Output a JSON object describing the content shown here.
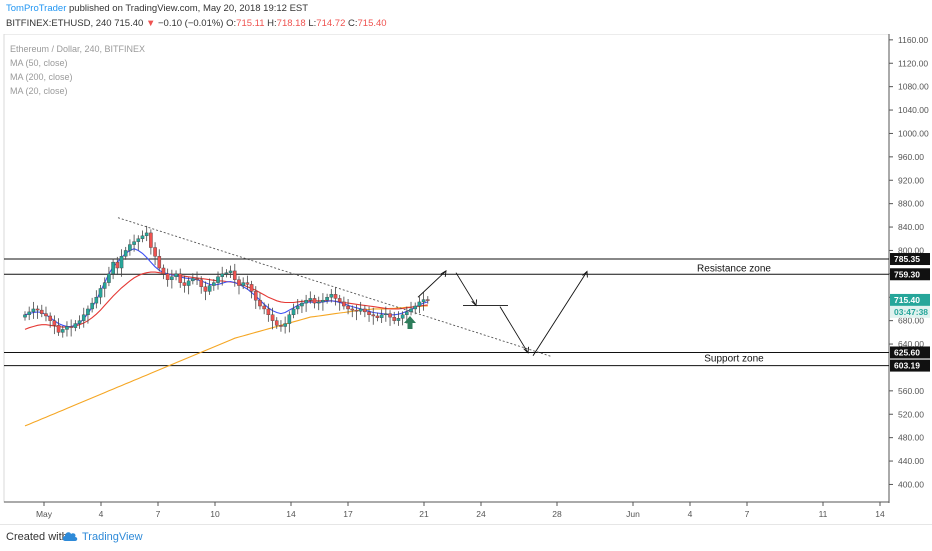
{
  "header": {
    "author": "TomProTrader",
    "published_text": " published on TradingView.com, May 20, 2018 19:12 EST",
    "symbol_line": "BITFINEX:ETHUSD, 240",
    "last": "715.40",
    "arrow": "▼",
    "change": "−0.10 (−0.01%)",
    "o_label": "O:",
    "o_val": "715.11",
    "h_label": "H:",
    "h_val": "718.18",
    "l_label": "L:",
    "l_val": "714.72",
    "c_label": "C:",
    "c_val": "715.40"
  },
  "legend": {
    "title": "Ethereum / Dollar, 240, BITFINEX",
    "ma1": "MA (50, close)",
    "ma2": "MA (200, close)",
    "ma3": "MA (20, close)"
  },
  "footer": {
    "created_with": "Created with",
    "brand": "TradingView"
  },
  "colors": {
    "up": "#26a69a",
    "down": "#ef5350",
    "ma20": "#3f51f5",
    "ma50": "#e53935",
    "ma200": "#f5a623",
    "arrow_green": "#2e7d5b",
    "brand": "#2e8ad8"
  },
  "chart_data": {
    "type": "line",
    "ylim": [
      370,
      1170
    ],
    "y_ticks": [
      400,
      440,
      480,
      520,
      560,
      640,
      680,
      720,
      760,
      800,
      840,
      880,
      920,
      960,
      1000,
      1040,
      1080,
      1120,
      1160
    ],
    "x_labels": [
      {
        "label": "May",
        "day": 1
      },
      {
        "label": "4",
        "day": 4
      },
      {
        "label": "7",
        "day": 7
      },
      {
        "label": "10",
        "day": 10
      },
      {
        "label": "14",
        "day": 14
      },
      {
        "label": "17",
        "day": 17
      },
      {
        "label": "21",
        "day": 21
      },
      {
        "label": "24",
        "day": 24
      },
      {
        "label": "28",
        "day": 28
      },
      {
        "label": "Jun",
        "day": 32
      },
      {
        "label": "4",
        "day": 35
      },
      {
        "label": "7",
        "day": 38
      },
      {
        "label": "11",
        "day": 42
      },
      {
        "label": "14",
        "day": 45
      }
    ],
    "price_labels": [
      {
        "text": "785.35",
        "value": 785.35,
        "style": "dark"
      },
      {
        "text": "759.30",
        "value": 759.3,
        "style": "dark"
      },
      {
        "text": "715.40",
        "value": 715.4,
        "style": "green"
      },
      {
        "text": "03:47:38",
        "value": 695,
        "style": "greenlight"
      },
      {
        "text": "625.60",
        "value": 625.6,
        "style": "dark"
      },
      {
        "text": "603.19",
        "value": 603.19,
        "style": "dark"
      }
    ],
    "zones": {
      "resistance": {
        "label": "Resistance zone",
        "top": 785.35,
        "bottom": 759.3
      },
      "support": {
        "label": "Support zone",
        "top": 625.6,
        "bottom": 603.19
      }
    },
    "candles_close": [
      690,
      695,
      700,
      698,
      692,
      688,
      680,
      672,
      660,
      665,
      670,
      668,
      675,
      680,
      690,
      700,
      710,
      720,
      735,
      745,
      760,
      780,
      770,
      790,
      800,
      810,
      815,
      820,
      825,
      830,
      805,
      790,
      770,
      760,
      750,
      755,
      760,
      745,
      740,
      748,
      752,
      750,
      738,
      730,
      740,
      745,
      755,
      760,
      762,
      765,
      750,
      740,
      745,
      742,
      730,
      715,
      705,
      700,
      690,
      680,
      672,
      670,
      675,
      690,
      700,
      705,
      710,
      715,
      718,
      710,
      712,
      715,
      720,
      725,
      718,
      712,
      705,
      700,
      698,
      696,
      700,
      695,
      690,
      688,
      685,
      690,
      692,
      686,
      680,
      684,
      690,
      695,
      700,
      705,
      712,
      716,
      715
    ],
    "series": [
      {
        "name": "MA (20, close)",
        "values": [
          690,
          692,
          694,
          695,
          694,
          690,
          685,
          680,
          675,
          672,
          670,
          670,
          672,
          676,
          683,
          692,
          703,
          715,
          730,
          745,
          760,
          772,
          780,
          788,
          795,
          800,
          803,
          800,
          795,
          788,
          780,
          772,
          766,
          762,
          760,
          758,
          757,
          755,
          753,
          752,
          751,
          750,
          748,
          745,
          742,
          741,
          742,
          744,
          746,
          747,
          745,
          742,
          738,
          734,
          728,
          722,
          715,
          708,
          702,
          697,
          694,
          692,
          694,
          698,
          702,
          706,
          709,
          711,
          712,
          711,
          711,
          712,
          713,
          714,
          713,
          711,
          709,
          706,
          704,
          702,
          700,
          698,
          696,
          694,
          693,
          692,
          691,
          690,
          690,
          691,
          693,
          696,
          699,
          703,
          707,
          710,
          712
        ]
      },
      {
        "name": "MA (50, close)",
        "values": [
          665,
          668,
          670,
          672,
          673,
          673,
          672,
          671,
          670,
          669,
          669,
          670,
          671,
          673,
          676,
          680,
          685,
          691,
          698,
          706,
          714,
          722,
          729,
          736,
          742,
          748,
          753,
          757,
          760,
          762,
          763,
          763,
          762,
          761,
          760,
          759,
          758,
          757,
          756,
          755,
          754,
          753,
          752,
          751,
          750,
          749,
          748,
          748,
          747,
          746,
          745,
          743,
          741,
          738,
          735,
          732,
          728,
          724,
          720,
          717,
          714,
          712,
          711,
          711,
          711,
          712,
          713,
          713,
          714,
          714,
          714,
          714,
          714,
          714,
          713,
          712,
          711,
          710,
          709,
          708,
          707,
          706,
          705,
          704,
          703,
          702,
          701,
          700,
          700,
          700,
          701,
          702,
          703,
          704,
          705,
          706,
          707
        ]
      },
      {
        "name": "MA (200, close)",
        "values": [
          500,
          503,
          506,
          509,
          512,
          515,
          518,
          521,
          524,
          527,
          530,
          533,
          536,
          539,
          542,
          545,
          548,
          551,
          554,
          557,
          560,
          563,
          566,
          569,
          572,
          575,
          578,
          581,
          584,
          587,
          590,
          593,
          596,
          599,
          602,
          605,
          608,
          611,
          614,
          617,
          620,
          623,
          626,
          629,
          632,
          635,
          638,
          641,
          644,
          647,
          650,
          652,
          654,
          656,
          658,
          660,
          662,
          664,
          666,
          668,
          670,
          672,
          674,
          676,
          678,
          680,
          682,
          684,
          686,
          687,
          688,
          689,
          690,
          691,
          692,
          693,
          694,
          695,
          696,
          697,
          698,
          699,
          699,
          700,
          700,
          700,
          700,
          701,
          701,
          702,
          702,
          703,
          703,
          704,
          704,
          705,
          705
        ]
      }
    ]
  }
}
